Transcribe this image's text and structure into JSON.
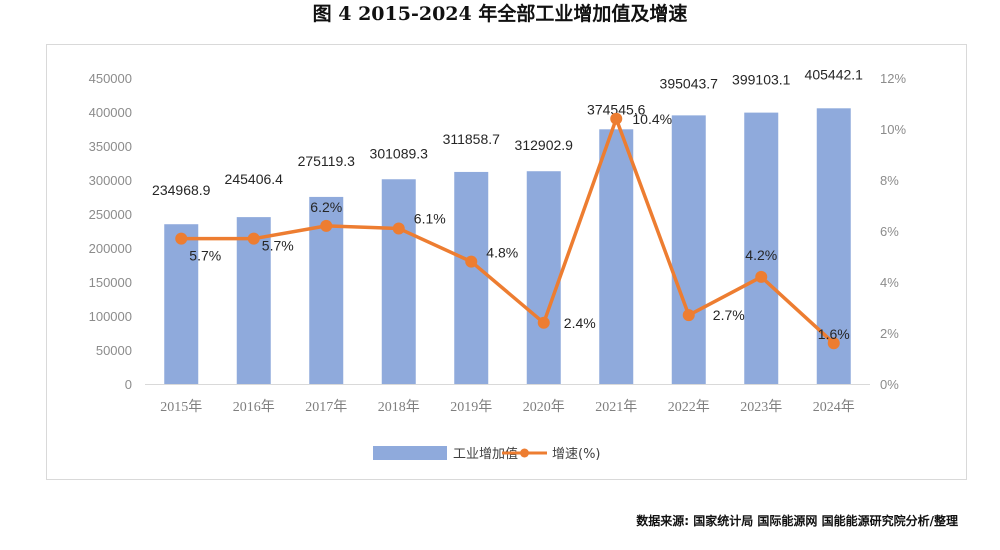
{
  "title": "图  4 2015-2024 年全部工业增加值及增速",
  "source": "数据来源:   国家统计局  国际能源网  国能能源研究院分析/整理",
  "colors": {
    "bar": "#8faadc",
    "line": "#ed7d31",
    "axis": "#d9d9d9"
  },
  "chart_data": {
    "type": "bar",
    "categories": [
      "2015年",
      "2016年",
      "2017年",
      "2018年",
      "2019年",
      "2020年",
      "2021年",
      "2022年",
      "2023年",
      "2024年"
    ],
    "series": [
      {
        "name": "工业增加值",
        "type": "bar",
        "axis": "left",
        "values": [
          234968.9,
          245406.4,
          275119.3,
          301089.3,
          311858.7,
          312902.9,
          374545.6,
          395043.7,
          399103.1,
          405442.1
        ],
        "labels": [
          "234968.9",
          "245406.4",
          "275119.3",
          "301089.3",
          "311858.7",
          "312902.9",
          "374545.6",
          "395043.7",
          "399103.1",
          "405442.1"
        ]
      },
      {
        "name": "增速(%)",
        "type": "line",
        "axis": "right",
        "values": [
          5.7,
          5.7,
          6.2,
          6.1,
          4.8,
          2.4,
          10.4,
          2.7,
          4.2,
          1.6
        ],
        "labels": [
          "5.7%",
          "5.7%",
          "6.2%",
          "6.1%",
          "4.8%",
          "2.4%",
          "10.4%",
          "2.7%",
          "4.2%",
          "1.6%"
        ]
      }
    ],
    "y_left": {
      "range": [
        0,
        450000
      ],
      "ticks": [
        "0",
        "50000",
        "100000",
        "150000",
        "200000",
        "250000",
        "300000",
        "350000",
        "400000",
        "450000"
      ]
    },
    "y_right": {
      "range": [
        0,
        12
      ],
      "ticks": [
        "0%",
        "2%",
        "4%",
        "6%",
        "8%",
        "10%",
        "12%"
      ]
    },
    "grid": false,
    "legend": "bottom"
  }
}
